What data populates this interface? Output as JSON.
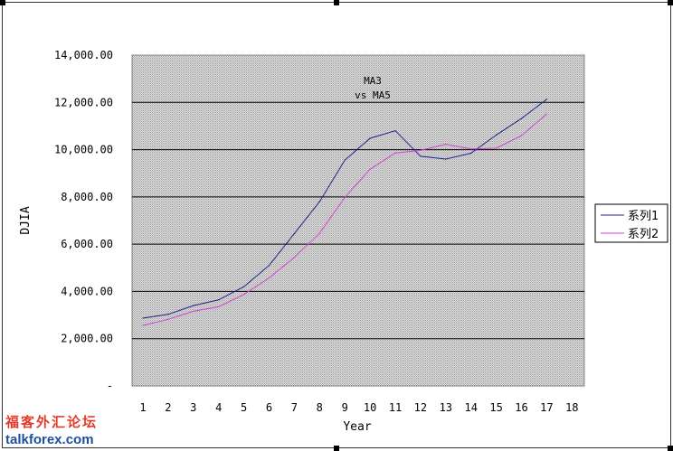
{
  "chart_data": {
    "type": "line",
    "title": "MA3\nvs MA5",
    "xlabel": "Year",
    "ylabel": "DJIA",
    "x": [
      1,
      2,
      3,
      4,
      5,
      6,
      7,
      8,
      9,
      10,
      11,
      12,
      13,
      14,
      15,
      16,
      17
    ],
    "x_ticks": [
      "1",
      "2",
      "3",
      "4",
      "5",
      "6",
      "7",
      "8",
      "9",
      "10",
      "11",
      "12",
      "13",
      "14",
      "15",
      "16",
      "17",
      "18"
    ],
    "ylim": [
      0,
      14000
    ],
    "y_ticks": [
      "-",
      "2,000.00",
      "4,000.00",
      "6,000.00",
      "8,000.00",
      "10,000.00",
      "12,000.00",
      "14,000.00"
    ],
    "grid": true,
    "legend": "right",
    "series": [
      {
        "name": "系列1",
        "color": "#1f1f8f",
        "values": [
          2870,
          3030,
          3400,
          3640,
          4200,
          5100,
          6450,
          7800,
          9550,
          10480,
          10800,
          9720,
          9600,
          9850,
          10620,
          11320,
          12130
        ]
      },
      {
        "name": "系列2",
        "color": "#d43fd4",
        "values": [
          2560,
          2820,
          3160,
          3350,
          3870,
          4570,
          5440,
          6460,
          7980,
          9170,
          9860,
          9970,
          10230,
          10030,
          10060,
          10590,
          11510
        ]
      }
    ]
  },
  "watermark": {
    "line1": "福客外汇论坛",
    "line2": "talkforex.com"
  }
}
